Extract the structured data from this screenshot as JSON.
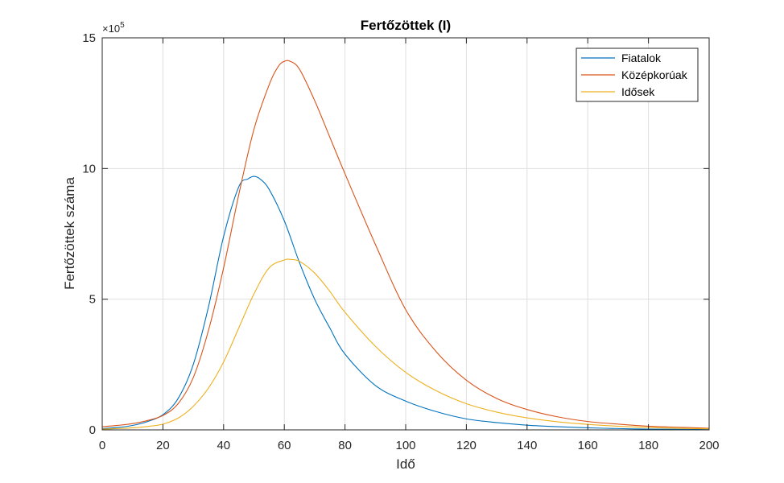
{
  "chart_data": {
    "type": "line",
    "title": "Fertőzöttek (I)",
    "xlabel": "Idő",
    "ylabel": "Fertőzöttek száma",
    "xlim": [
      0,
      200
    ],
    "ylim": [
      0,
      1500000
    ],
    "x_ticks": [
      0,
      20,
      40,
      60,
      80,
      100,
      120,
      140,
      160,
      180,
      200
    ],
    "y_ticks": [
      0,
      500000,
      1000000,
      1500000
    ],
    "y_tick_labels": [
      "0",
      "5",
      "10",
      "15"
    ],
    "y_exponent_label": "×10",
    "y_exponent": "5",
    "grid": true,
    "legend_position": "top-right",
    "series": [
      {
        "name": "Fiatalok",
        "color": "#0072BD",
        "x": [
          0,
          5,
          10,
          15,
          20,
          25,
          30,
          35,
          40,
          45,
          48,
          50,
          52,
          55,
          60,
          65,
          70,
          75,
          80,
          90,
          100,
          110,
          120,
          130,
          140,
          150,
          160,
          170,
          180,
          190,
          200
        ],
        "y": [
          5000,
          9000,
          17000,
          32000,
          58000,
          120000,
          250000,
          470000,
          740000,
          930000,
          960000,
          970000,
          960000,
          920000,
          800000,
          640000,
          500000,
          390000,
          290000,
          170000,
          110000,
          70000,
          42000,
          28000,
          18000,
          12000,
          8000,
          5000,
          3000,
          2000,
          1000
        ]
      },
      {
        "name": "Középkorúak",
        "color": "#D95319",
        "x": [
          0,
          5,
          10,
          15,
          20,
          25,
          30,
          35,
          40,
          45,
          50,
          55,
          58,
          60,
          62,
          65,
          70,
          75,
          80,
          90,
          100,
          110,
          120,
          130,
          140,
          150,
          160,
          170,
          180,
          190,
          200
        ],
        "y": [
          12000,
          17000,
          24000,
          36000,
          55000,
          100000,
          200000,
          380000,
          620000,
          900000,
          1150000,
          1320000,
          1390000,
          1410000,
          1410000,
          1380000,
          1260000,
          1120000,
          980000,
          710000,
          460000,
          300000,
          190000,
          120000,
          78000,
          50000,
          32000,
          22000,
          14000,
          10000,
          6000
        ]
      },
      {
        "name": "Idősek",
        "color": "#EDB120",
        "x": [
          0,
          5,
          10,
          15,
          20,
          25,
          30,
          35,
          40,
          45,
          50,
          55,
          60,
          62,
          65,
          70,
          75,
          80,
          90,
          100,
          110,
          120,
          130,
          140,
          150,
          160,
          170,
          180,
          190,
          200
        ],
        "y": [
          3000,
          5000,
          8000,
          13000,
          22000,
          45000,
          90000,
          160000,
          260000,
          390000,
          520000,
          620000,
          650000,
          652000,
          645000,
          600000,
          530000,
          450000,
          320000,
          220000,
          150000,
          100000,
          68000,
          46000,
          31000,
          21000,
          14000,
          9000,
          6000,
          4000
        ]
      }
    ]
  }
}
